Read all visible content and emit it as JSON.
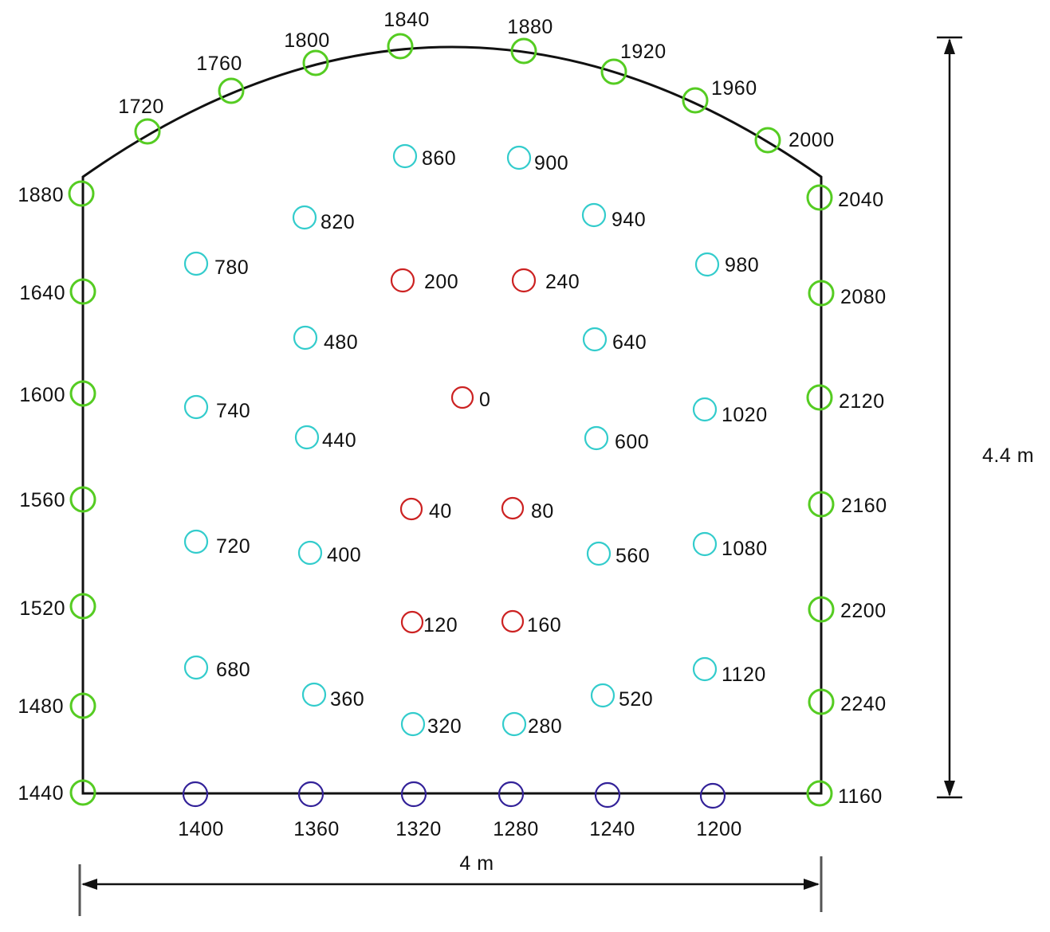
{
  "dimensions": {
    "width_label": "4 m",
    "height_label": "4.4 m"
  },
  "colors": {
    "cut_holes": "#cc2222",
    "auxiliary_holes": "#33cccc",
    "contour_holes": "#55cc22",
    "floor_holes": "#332299",
    "outline": "#111111"
  },
  "hole_groups": [
    {
      "group": "cut_holes",
      "labels": [
        "0",
        "40",
        "80",
        "120",
        "160",
        "200",
        "240"
      ]
    },
    {
      "group": "auxiliary_holes",
      "labels": [
        "280",
        "320",
        "360",
        "400",
        "440",
        "480",
        "520",
        "560",
        "600",
        "640",
        "680",
        "720",
        "740",
        "780",
        "820",
        "860",
        "900",
        "940",
        "980",
        "1020",
        "1080",
        "1120"
      ]
    },
    {
      "group": "floor_holes",
      "labels": [
        "1200",
        "1240",
        "1280",
        "1320",
        "1360",
        "1400"
      ]
    },
    {
      "group": "contour_holes",
      "labels": [
        "1160",
        "1440",
        "1480",
        "1520",
        "1560",
        "1600",
        "1640",
        "1880",
        "1720",
        "1760",
        "1800",
        "1840",
        "1880",
        "1920",
        "1960",
        "2000",
        "2040",
        "2080",
        "2120",
        "2160",
        "2200",
        "2240"
      ]
    }
  ]
}
